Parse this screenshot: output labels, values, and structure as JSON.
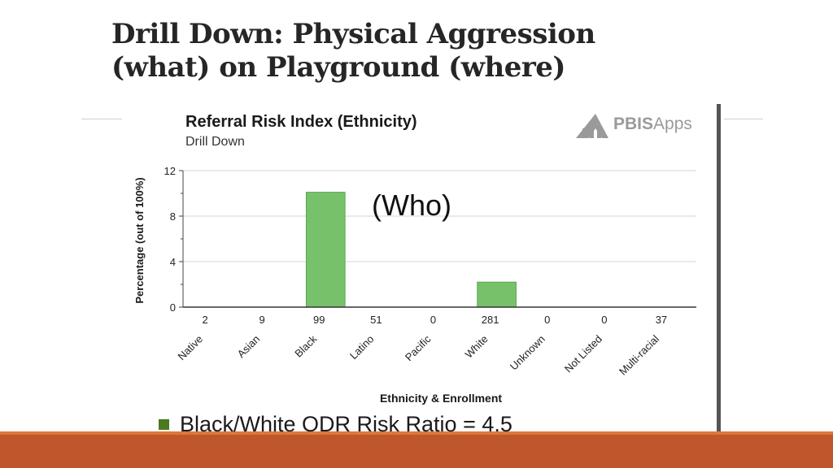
{
  "slide": {
    "title_line1": "Drill Down:  Physical Aggression",
    "title_line2": "(what) on Playground (where)",
    "bullet": "Black/White ODR Risk Ratio = 4.5",
    "callout": "(Who)",
    "footer_color": "#c0562b",
    "bullet_color": "#4a7a1e"
  },
  "logo": {
    "brand": "PBIS",
    "suffix": "Apps"
  },
  "chart_data": {
    "type": "bar",
    "title": "Referral Risk Index (Ethnicity)",
    "subtitle": "Drill Down",
    "xlabel": "Ethnicity & Enrollment",
    "ylabel": "Percentage (out of 100%)",
    "ylim": [
      0,
      12
    ],
    "yticks": [
      0,
      4,
      8,
      12
    ],
    "grid": true,
    "bar_color": "#77c16b",
    "categories": [
      "Native",
      "Asian",
      "Black",
      "Latino",
      "Pacific",
      "White",
      "Unknown",
      "Not Listed",
      "Multi-racial"
    ],
    "enrollment": [
      "2",
      "9",
      "99",
      "51",
      "0",
      "281",
      "0",
      "0",
      "37"
    ],
    "values": [
      0,
      0,
      10.1,
      0,
      0,
      2.2,
      0,
      0,
      0
    ]
  }
}
